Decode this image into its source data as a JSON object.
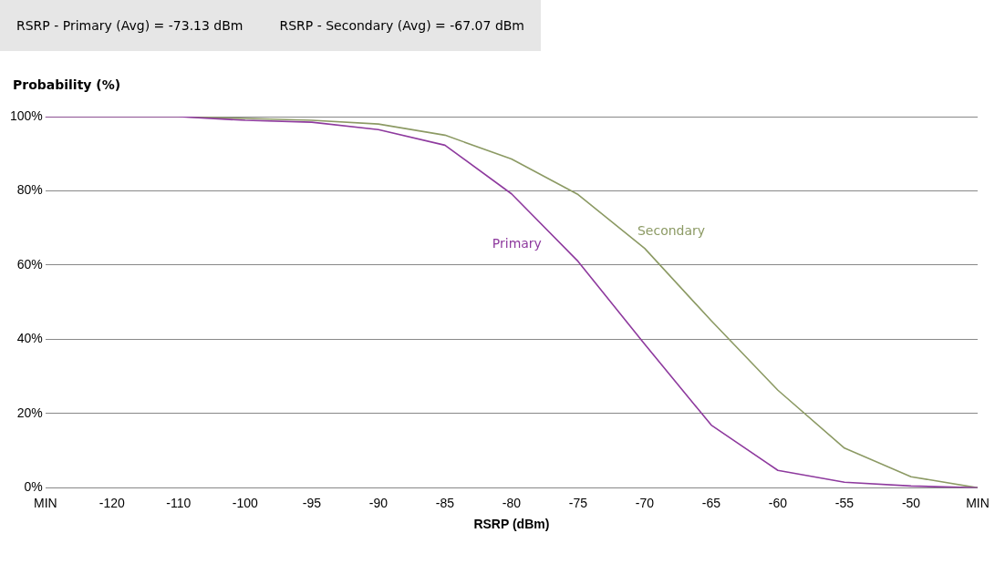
{
  "chart_data": {
    "type": "line",
    "ylabel": "Probability (%)",
    "xlabel": "RSRP (dBm)",
    "annotations": [
      "RSRP - Primary (Avg) = -73.13 dBm",
      "RSRP - Secondary (Avg) = -67.07 dBm"
    ],
    "categories": [
      "MIN",
      "-120",
      "-110",
      "-100",
      "-95",
      "-90",
      "-85",
      "-80",
      "-75",
      "-70",
      "-65",
      "-60",
      "-55",
      "-50",
      "MIN"
    ],
    "series": [
      {
        "name": "Primary",
        "color": "#8e3a9e",
        "values": [
          100,
          100,
          100,
          99,
          98.5,
          96.5,
          92.3,
          79.2,
          61,
          38.7,
          16.9,
          4.7,
          1.5,
          0.5,
          0
        ]
      },
      {
        "name": "Secondary",
        "color": "#8c9a64",
        "values": [
          100,
          100,
          100,
          99.5,
          99,
          98,
          95,
          88.6,
          79,
          64.5,
          45,
          26.3,
          10.7,
          3,
          0
        ]
      }
    ],
    "ylim": [
      0,
      100
    ],
    "yticks": [
      {
        "value": 0,
        "label": "0%"
      },
      {
        "value": 20,
        "label": "20%"
      },
      {
        "value": 40,
        "label": "40%"
      },
      {
        "value": 60,
        "label": "60%"
      },
      {
        "value": 80,
        "label": "80%"
      },
      {
        "value": 100,
        "label": "100%"
      }
    ],
    "grid": "y",
    "legend": false,
    "marker": "none",
    "line_style": "solid"
  }
}
